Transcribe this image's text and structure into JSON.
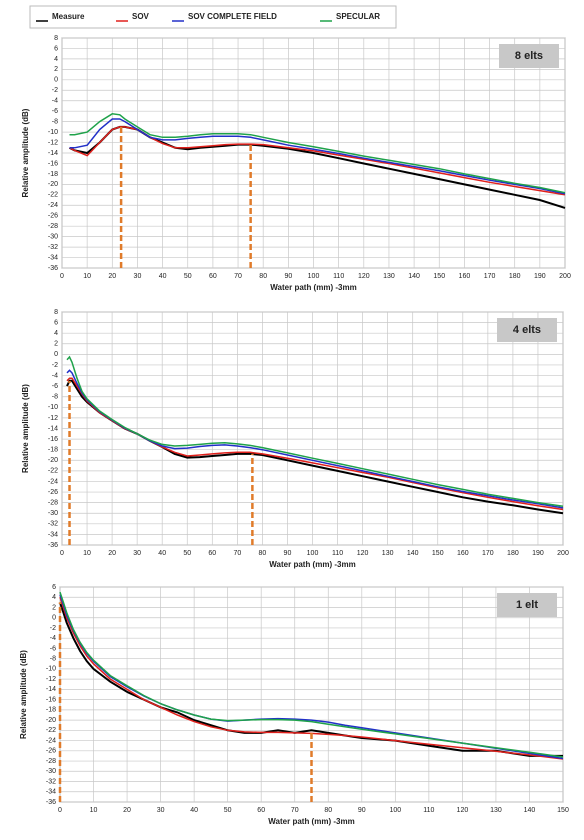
{
  "legend": [
    {
      "name": "Measure",
      "color": "#000000"
    },
    {
      "name": "SOV",
      "color": "#e0201c"
    },
    {
      "name": "SOV COMPLETE FIELD",
      "color": "#2230c8"
    },
    {
      "name": "SPECULAR",
      "color": "#1fa24a"
    }
  ],
  "chart_data": [
    {
      "type": "line",
      "label": "8 elts",
      "x_label": "Water path (mm) -3mm",
      "y_label": "Relative amplitude (dB)",
      "xlim": [
        0,
        200
      ],
      "xticks": [
        0,
        10,
        20,
        30,
        40,
        50,
        60,
        70,
        80,
        90,
        100,
        110,
        120,
        130,
        140,
        150,
        160,
        170,
        180,
        190,
        200
      ],
      "ylim": [
        -36,
        8
      ],
      "yticks": [
        8,
        6,
        4,
        2,
        0,
        -2,
        -4,
        -6,
        -8,
        -10,
        -12,
        -14,
        -16,
        -18,
        -20,
        -22,
        -24,
        -26,
        -28,
        -30,
        -32,
        -34,
        -36
      ],
      "grid": true,
      "x": [
        3,
        5,
        10,
        15,
        20,
        23,
        25,
        30,
        35,
        40,
        45,
        50,
        55,
        60,
        65,
        70,
        75,
        80,
        90,
        100,
        110,
        120,
        130,
        140,
        150,
        160,
        170,
        180,
        190,
        200
      ],
      "series": [
        {
          "color": "#000000",
          "values": [
            -13,
            -13.5,
            -14,
            -12,
            -9.5,
            -9,
            -9,
            -9.5,
            -11,
            -12,
            -13,
            -13.3,
            -13,
            -12.8,
            -12.6,
            -12.4,
            -12.4,
            -12.6,
            -13.2,
            -14,
            -15,
            -16,
            -17,
            -18,
            -19,
            -20,
            -21,
            -22,
            -23,
            -24.5
          ]
        },
        {
          "color": "#e0201c",
          "values": [
            -13,
            -13.5,
            -14.5,
            -12,
            -9.5,
            -9,
            -9,
            -9.5,
            -11,
            -12.2,
            -13,
            -13,
            -12.8,
            -12.6,
            -12.4,
            -12.3,
            -12.3,
            -12.4,
            -13,
            -13.6,
            -14.4,
            -15.2,
            -16,
            -16.9,
            -17.8,
            -18.7,
            -19.6,
            -20.4,
            -21.2,
            -22
          ]
        },
        {
          "color": "#2230c8",
          "values": [
            -13,
            -13,
            -12.5,
            -9.5,
            -7.5,
            -7.5,
            -8,
            -9.5,
            -11,
            -11.5,
            -11.5,
            -11.2,
            -11,
            -10.8,
            -10.8,
            -10.8,
            -11,
            -11.5,
            -12.5,
            -13.3,
            -14.1,
            -15,
            -15.8,
            -16.6,
            -17.4,
            -18.3,
            -19.2,
            -20,
            -20.8,
            -21.8
          ]
        },
        {
          "color": "#1fa24a",
          "values": [
            -10.5,
            -10.5,
            -10,
            -8,
            -6.5,
            -6.7,
            -7.5,
            -9,
            -10.5,
            -11,
            -11,
            -10.8,
            -10.5,
            -10.3,
            -10.3,
            -10.3,
            -10.5,
            -11,
            -12,
            -12.8,
            -13.7,
            -14.6,
            -15.4,
            -16.2,
            -17,
            -18,
            -18.9,
            -19.8,
            -20.6,
            -21.6
          ]
        }
      ],
      "marker_color": "#e07b2a",
      "markers": [
        {
          "x": 23.5,
          "y": -9
        },
        {
          "x": 75,
          "y": -12.4
        }
      ]
    },
    {
      "type": "line",
      "label": "4 elts",
      "x_label": "Water path (mm) -3mm",
      "y_label": "Relative amplitude (dB)",
      "xlim": [
        0,
        200
      ],
      "xticks": [
        0,
        10,
        20,
        30,
        40,
        50,
        60,
        70,
        80,
        90,
        100,
        110,
        120,
        130,
        140,
        150,
        160,
        170,
        180,
        190,
        200
      ],
      "ylim": [
        -36,
        8
      ],
      "yticks": [
        8,
        6,
        4,
        2,
        0,
        -2,
        -4,
        -6,
        -8,
        -10,
        -12,
        -14,
        -16,
        -18,
        -20,
        -22,
        -24,
        -26,
        -28,
        -30,
        -32,
        -34,
        -36
      ],
      "grid": true,
      "x": [
        2,
        3,
        4,
        6,
        8,
        10,
        15,
        20,
        25,
        30,
        35,
        40,
        45,
        50,
        55,
        60,
        65,
        70,
        75,
        80,
        90,
        100,
        110,
        120,
        130,
        140,
        150,
        160,
        170,
        180,
        190,
        200
      ],
      "series": [
        {
          "color": "#000000",
          "values": [
            -6,
            -5,
            -5,
            -6.5,
            -8,
            -9,
            -11,
            -12.5,
            -14,
            -15,
            -16.3,
            -17.5,
            -18.8,
            -19.5,
            -19.4,
            -19.2,
            -19,
            -18.8,
            -18.8,
            -19,
            -20,
            -21,
            -22,
            -23,
            -24,
            -25,
            -26,
            -27,
            -27.8,
            -28.5,
            -29.3,
            -30
          ]
        },
        {
          "color": "#e0201c",
          "values": [
            -5,
            -4.5,
            -4.5,
            -6,
            -7.5,
            -8.8,
            -11,
            -12.5,
            -14,
            -15,
            -16.3,
            -17.5,
            -18.5,
            -19.2,
            -19,
            -18.8,
            -18.6,
            -18.5,
            -18.5,
            -18.8,
            -19.6,
            -20.5,
            -21.4,
            -22.3,
            -23.2,
            -24.2,
            -25.2,
            -26.1,
            -27,
            -27.8,
            -28.6,
            -29.3
          ]
        },
        {
          "color": "#2230c8",
          "values": [
            -3.5,
            -3,
            -3.5,
            -5.5,
            -7.3,
            -8.6,
            -10.8,
            -12.4,
            -13.9,
            -15,
            -16.3,
            -17.3,
            -17.8,
            -17.7,
            -17.4,
            -17.2,
            -17.1,
            -17.3,
            -17.6,
            -18,
            -19,
            -20,
            -21,
            -22,
            -23,
            -24,
            -25,
            -25.9,
            -26.7,
            -27.5,
            -28.2,
            -29
          ]
        },
        {
          "color": "#1fa24a",
          "values": [
            -1,
            -0.5,
            -1.5,
            -4.5,
            -7,
            -8.4,
            -10.7,
            -12.3,
            -13.8,
            -15,
            -16.2,
            -17,
            -17.3,
            -17.2,
            -17,
            -16.8,
            -16.7,
            -16.9,
            -17.2,
            -17.6,
            -18.6,
            -19.6,
            -20.6,
            -21.6,
            -22.6,
            -23.6,
            -24.6,
            -25.5,
            -26.4,
            -27.2,
            -28,
            -28.7
          ]
        }
      ],
      "marker_color": "#e07b2a",
      "markers": [
        {
          "x": 3,
          "y": -5
        },
        {
          "x": 76,
          "y": -18.8
        }
      ]
    },
    {
      "type": "line",
      "label": "1 elt",
      "x_label": "Water path (mm) -3mm",
      "y_label": "Relative amplitude (dB)",
      "xlim": [
        0,
        150
      ],
      "xticks": [
        0,
        10,
        20,
        30,
        40,
        50,
        60,
        70,
        80,
        90,
        100,
        110,
        120,
        130,
        140,
        150
      ],
      "ylim": [
        -36,
        6
      ],
      "yticks": [
        6,
        4,
        2,
        0,
        -2,
        -4,
        -6,
        -8,
        -10,
        -12,
        -14,
        -16,
        -18,
        -20,
        -22,
        -24,
        -26,
        -28,
        -30,
        -32,
        -34,
        -36
      ],
      "grid": true,
      "x": [
        0,
        1,
        2,
        4,
        6,
        8,
        10,
        15,
        20,
        25,
        30,
        35,
        40,
        45,
        50,
        55,
        60,
        65,
        70,
        75,
        80,
        85,
        90,
        100,
        110,
        120,
        130,
        140,
        150
      ],
      "series": [
        {
          "color": "#000000",
          "values": [
            3,
            1,
            -1,
            -4,
            -6.5,
            -8.5,
            -10,
            -12.5,
            -14.5,
            -16,
            -17.5,
            -18.5,
            -20,
            -21,
            -22,
            -22.5,
            -22.5,
            -22,
            -22.5,
            -22,
            -22.5,
            -23,
            -23.5,
            -24,
            -25,
            -26,
            -26,
            -27,
            -27
          ]
        },
        {
          "color": "#e0201c",
          "values": [
            4,
            2,
            0,
            -3,
            -5.5,
            -7.5,
            -9,
            -12,
            -14,
            -16,
            -17.5,
            -19,
            -20.3,
            -21.3,
            -22,
            -22.3,
            -22.4,
            -22.4,
            -22.5,
            -22.6,
            -22.8,
            -23,
            -23.3,
            -24,
            -24.7,
            -25.4,
            -26.1,
            -26.8,
            -27.6
          ]
        },
        {
          "color": "#2230c8",
          "values": [
            4.5,
            2.5,
            0.5,
            -2.5,
            -5,
            -7,
            -8.5,
            -11.5,
            -13.5,
            -15.3,
            -16.8,
            -18,
            -19,
            -19.8,
            -20.2,
            -20,
            -19.8,
            -19.7,
            -19.8,
            -20,
            -20.4,
            -21,
            -21.5,
            -22.5,
            -23.5,
            -24.5,
            -25.5,
            -26.5,
            -27.5
          ]
        },
        {
          "color": "#1fa24a",
          "values": [
            5,
            3,
            1,
            -2.3,
            -4.8,
            -6.8,
            -8.3,
            -11.3,
            -13.3,
            -15.2,
            -16.8,
            -18,
            -19,
            -19.8,
            -20.1,
            -20,
            -19.9,
            -19.9,
            -20,
            -20.3,
            -20.8,
            -21.3,
            -21.8,
            -22.7,
            -23.6,
            -24.5,
            -25.4,
            -26.3,
            -27.2
          ]
        }
      ],
      "marker_color": "#e07b2a",
      "markers": [
        {
          "x": 0,
          "y": 3
        },
        {
          "x": 75,
          "y": -22
        }
      ]
    }
  ]
}
